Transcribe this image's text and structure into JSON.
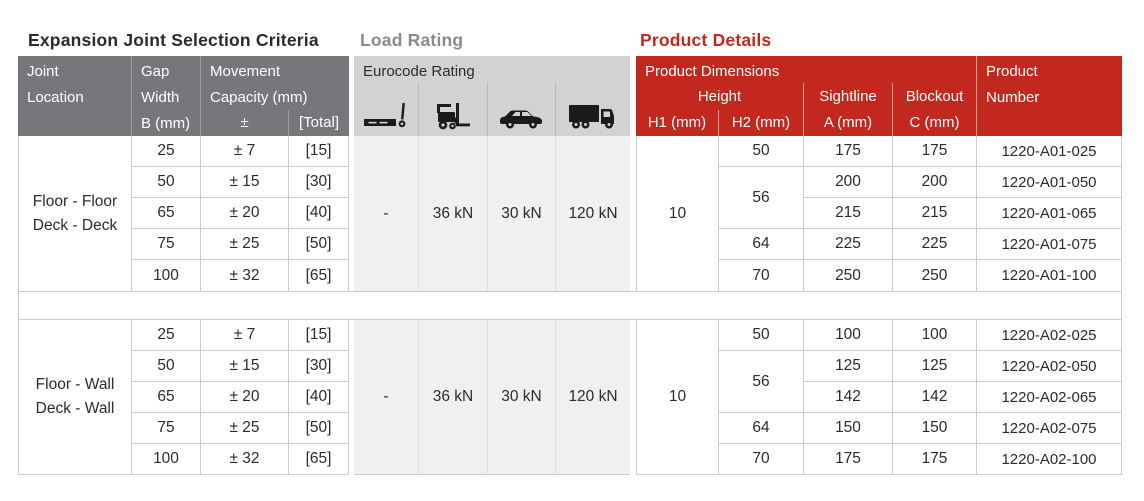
{
  "titles": {
    "selection": "Expansion Joint Selection Criteria",
    "load": "Load Rating",
    "product": "Product Details"
  },
  "header": {
    "joint_location": [
      "Joint",
      "Location"
    ],
    "gap_width": [
      "Gap",
      "Width",
      "B (mm)"
    ],
    "movement": [
      "Movement",
      "Capacity (mm)"
    ],
    "plus_minus": "±",
    "total": "[Total]",
    "eurocode": "Eurocode Rating",
    "product_dimensions": "Product Dimensions",
    "height": "Height",
    "sightline": "Sightline",
    "blockout": "Blockout",
    "h1": "H1 (mm)",
    "h2": "H2 (mm)",
    "a": "A (mm)",
    "c": "C (mm)",
    "product_number": [
      "Product",
      "Number"
    ]
  },
  "icons": [
    "pallet-truck",
    "forklift",
    "car",
    "truck"
  ],
  "groups": [
    {
      "location": [
        "Floor - Floor",
        "Deck - Deck"
      ],
      "load_ratings": [
        "-",
        "36 kN",
        "30 kN",
        "120 kN"
      ],
      "h1": "10",
      "h2_cells": [
        {
          "value": "50",
          "row": 0,
          "span": 1
        },
        {
          "value": "56",
          "row": 1,
          "span": 2
        },
        {
          "value": "64",
          "row": 3,
          "span": 1
        },
        {
          "value": "70",
          "row": 4,
          "span": 1
        }
      ],
      "rows": [
        {
          "gap": "25",
          "movement": "± 7",
          "total": "[15]",
          "sightline": "175",
          "blockout": "175",
          "product_number": "1220-A01-025"
        },
        {
          "gap": "50",
          "movement": "± 15",
          "total": "[30]",
          "sightline": "200",
          "blockout": "200",
          "product_number": "1220-A01-050"
        },
        {
          "gap": "65",
          "movement": "± 20",
          "total": "[40]",
          "sightline": "215",
          "blockout": "215",
          "product_number": "1220-A01-065"
        },
        {
          "gap": "75",
          "movement": "± 25",
          "total": "[50]",
          "sightline": "225",
          "blockout": "225",
          "product_number": "1220-A01-075"
        },
        {
          "gap": "100",
          "movement": "± 32",
          "total": "[65]",
          "sightline": "250",
          "blockout": "250",
          "product_number": "1220-A01-100"
        }
      ]
    },
    {
      "location": [
        "Floor - Wall",
        "Deck - Wall"
      ],
      "load_ratings": [
        "-",
        "36 kN",
        "30 kN",
        "120 kN"
      ],
      "h1": "10",
      "h2_cells": [
        {
          "value": "50",
          "row": 0,
          "span": 1
        },
        {
          "value": "56",
          "row": 1,
          "span": 2
        },
        {
          "value": "64",
          "row": 3,
          "span": 1
        },
        {
          "value": "70",
          "row": 4,
          "span": 1
        }
      ],
      "rows": [
        {
          "gap": "25",
          "movement": "± 7",
          "total": "[15]",
          "sightline": "100",
          "blockout": "100",
          "product_number": "1220-A02-025"
        },
        {
          "gap": "50",
          "movement": "± 15",
          "total": "[30]",
          "sightline": "125",
          "blockout": "125",
          "product_number": "1220-A02-050"
        },
        {
          "gap": "65",
          "movement": "± 20",
          "total": "[40]",
          "sightline": "142",
          "blockout": "142",
          "product_number": "1220-A02-065"
        },
        {
          "gap": "75",
          "movement": "± 25",
          "total": "[50]",
          "sightline": "150",
          "blockout": "150",
          "product_number": "1220-A02-075"
        },
        {
          "gap": "100",
          "movement": "± 32",
          "total": "[65]",
          "sightline": "175",
          "blockout": "175",
          "product_number": "1220-A02-100"
        }
      ]
    }
  ],
  "colors": {
    "header_dark": "#77777b",
    "header_light": "#d2d2d4",
    "eurocode_row_bg": "#f0f0f2",
    "red": "#c2281e",
    "border": "#cbcbcd",
    "title_gray": "#8b8b8e",
    "text": "#2b2b2b"
  }
}
